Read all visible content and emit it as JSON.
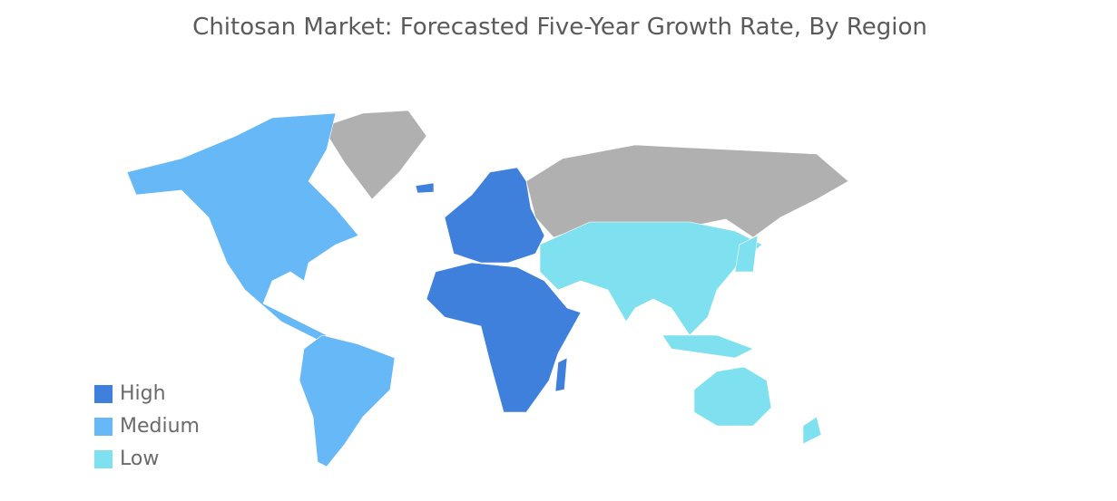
{
  "title": "Chitosan Market: Forecasted Five-Year Growth Rate, By Region",
  "legend": [
    {
      "label": "High",
      "color": "#3f80dc"
    },
    {
      "label": "Medium",
      "color": "#66b8f6"
    },
    {
      "label": "Low",
      "color": "#7fe0ef"
    }
  ],
  "no_data_color": "#b0b0b0"
}
